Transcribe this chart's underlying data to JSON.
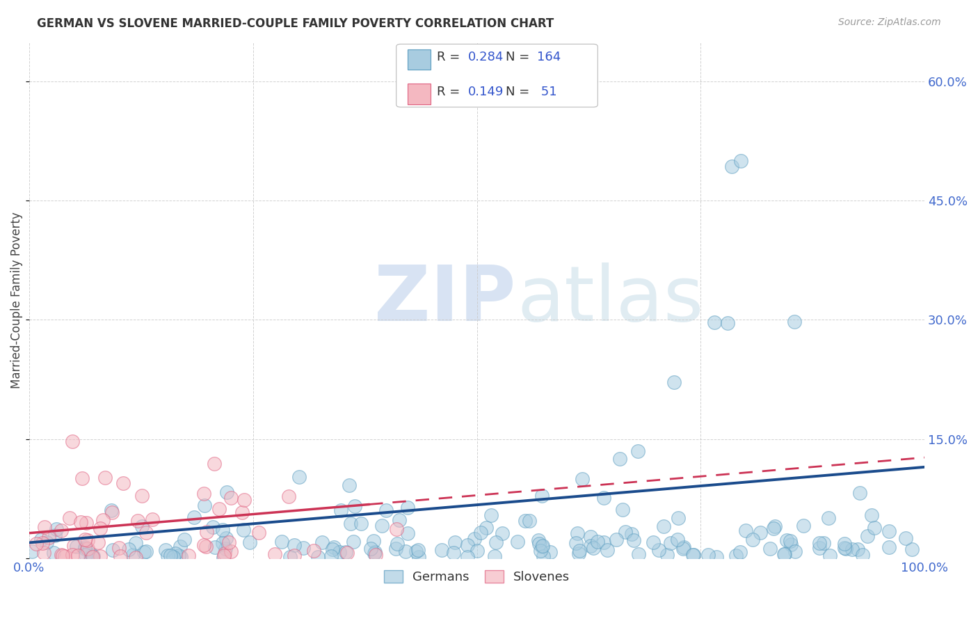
{
  "title": "GERMAN VS SLOVENE MARRIED-COUPLE FAMILY POVERTY CORRELATION CHART",
  "source": "Source: ZipAtlas.com",
  "ylabel": "Married-Couple Family Poverty",
  "watermark_zip": "ZIP",
  "watermark_atlas": "atlas",
  "xlim": [
    0,
    1.0
  ],
  "ylim": [
    0,
    0.65
  ],
  "xtick_positions": [
    0.0,
    0.25,
    0.5,
    0.75,
    1.0
  ],
  "xticklabels": [
    "0.0%",
    "",
    "",
    "",
    "100.0%"
  ],
  "ytick_positions": [
    0.0,
    0.15,
    0.3,
    0.45,
    0.6
  ],
  "yticklabels_right": [
    "",
    "15.0%",
    "30.0%",
    "45.0%",
    "60.0%"
  ],
  "german_R": 0.284,
  "german_N": 164,
  "slovene_R": 0.149,
  "slovene_N": 51,
  "german_color": "#a8cce0",
  "german_edge": "#5b9dc0",
  "slovene_color": "#f4b8c1",
  "slovene_edge": "#e06080",
  "german_line_color": "#1a4b8c",
  "slovene_line_color": "#cc3355",
  "background_color": "#ffffff",
  "grid_color": "#cccccc",
  "tick_label_color": "#4169CD",
  "title_color": "#333333",
  "source_color": "#999999",
  "ylabel_color": "#444444",
  "legend_text_color": "#333333",
  "legend_val_color": "#3355cc"
}
